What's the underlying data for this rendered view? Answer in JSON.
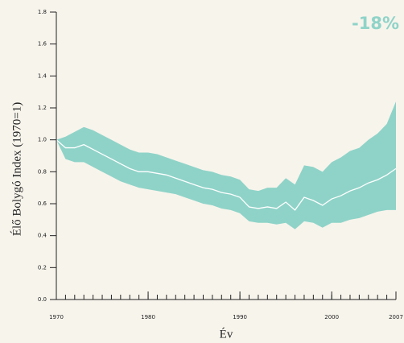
{
  "chart_data": {
    "type": "band-line",
    "annotation": "-18%",
    "xlabel": "Év",
    "ylabel": "Élő Bolygó Index (1970=1)",
    "x": [
      1970,
      1971,
      1972,
      1973,
      1974,
      1975,
      1976,
      1977,
      1978,
      1979,
      1980,
      1981,
      1982,
      1983,
      1984,
      1985,
      1986,
      1987,
      1988,
      1989,
      1990,
      1991,
      1992,
      1993,
      1994,
      1995,
      1996,
      1997,
      1998,
      1999,
      2000,
      2001,
      2002,
      2003,
      2004,
      2005,
      2006,
      2007
    ],
    "values": [
      1.0,
      0.95,
      0.95,
      0.97,
      0.94,
      0.91,
      0.88,
      0.85,
      0.82,
      0.8,
      0.8,
      0.79,
      0.78,
      0.76,
      0.74,
      0.72,
      0.7,
      0.69,
      0.67,
      0.66,
      0.64,
      0.58,
      0.57,
      0.58,
      0.57,
      0.61,
      0.56,
      0.64,
      0.62,
      0.59,
      0.63,
      0.65,
      0.68,
      0.7,
      0.73,
      0.75,
      0.78,
      0.82
    ],
    "upper": [
      1.0,
      1.02,
      1.05,
      1.08,
      1.06,
      1.03,
      1.0,
      0.97,
      0.94,
      0.92,
      0.92,
      0.91,
      0.89,
      0.87,
      0.85,
      0.83,
      0.81,
      0.8,
      0.78,
      0.77,
      0.75,
      0.69,
      0.68,
      0.7,
      0.7,
      0.76,
      0.72,
      0.84,
      0.83,
      0.8,
      0.86,
      0.89,
      0.93,
      0.95,
      1.0,
      1.04,
      1.1,
      1.24
    ],
    "lower": [
      1.0,
      0.88,
      0.86,
      0.86,
      0.83,
      0.8,
      0.77,
      0.74,
      0.72,
      0.7,
      0.69,
      0.68,
      0.67,
      0.66,
      0.64,
      0.62,
      0.6,
      0.59,
      0.57,
      0.56,
      0.54,
      0.49,
      0.48,
      0.48,
      0.47,
      0.48,
      0.44,
      0.49,
      0.48,
      0.45,
      0.48,
      0.48,
      0.5,
      0.51,
      0.53,
      0.55,
      0.56,
      0.56
    ],
    "line_color": "#ffffff",
    "band_color": "#8fd3c8",
    "annotation_color": "#8fd3c8",
    "xlim": [
      1970,
      2007
    ],
    "xticks": [
      1970,
      1980,
      1990,
      2000,
      2007
    ],
    "ylim": [
      0,
      1.8
    ],
    "yticks": [
      {
        "value": 0,
        "label": "0.0"
      },
      0.2,
      0.4,
      0.6,
      0.8,
      {
        "value": 1,
        "label": "1.0"
      },
      1.2,
      1.4,
      1.6,
      1.8
    ]
  }
}
